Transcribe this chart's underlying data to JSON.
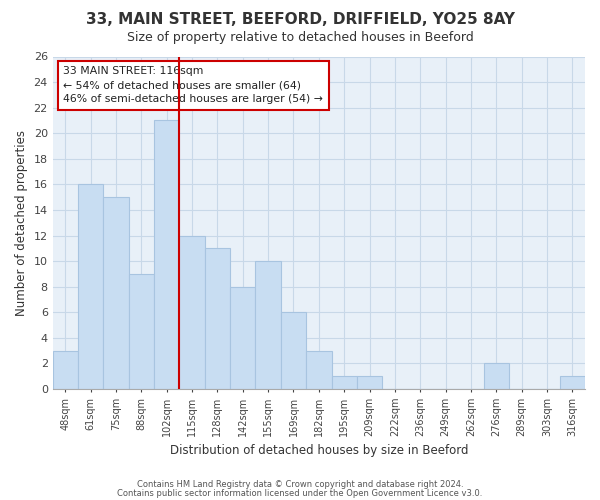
{
  "title": "33, MAIN STREET, BEEFORD, DRIFFIELD, YO25 8AY",
  "subtitle": "Size of property relative to detached houses in Beeford",
  "xlabel": "Distribution of detached houses by size in Beeford",
  "ylabel": "Number of detached properties",
  "bar_color": "#c8ddf2",
  "bar_edge_color": "#a8c4e0",
  "bin_labels": [
    "48sqm",
    "61sqm",
    "75sqm",
    "88sqm",
    "102sqm",
    "115sqm",
    "128sqm",
    "142sqm",
    "155sqm",
    "169sqm",
    "182sqm",
    "195sqm",
    "209sqm",
    "222sqm",
    "236sqm",
    "249sqm",
    "262sqm",
    "276sqm",
    "289sqm",
    "303sqm",
    "316sqm"
  ],
  "values": [
    3,
    16,
    15,
    9,
    21,
    12,
    11,
    8,
    10,
    6,
    3,
    1,
    1,
    0,
    0,
    0,
    0,
    2,
    0,
    0,
    1
  ],
  "ylim": [
    0,
    26
  ],
  "yticks": [
    0,
    2,
    4,
    6,
    8,
    10,
    12,
    14,
    16,
    18,
    20,
    22,
    24,
    26
  ],
  "vline_x": 5,
  "vline_color": "#cc0000",
  "annotation_title": "33 MAIN STREET: 116sqm",
  "annotation_line1": "← 54% of detached houses are smaller (64)",
  "annotation_line2": "46% of semi-detached houses are larger (54) →",
  "annotation_box_color": "#ffffff",
  "annotation_box_edge": "#cc0000",
  "footer1": "Contains HM Land Registry data © Crown copyright and database right 2024.",
  "footer2": "Contains public sector information licensed under the Open Government Licence v3.0.",
  "background_color": "#ffffff",
  "plot_bg_color": "#e8f0f8",
  "grid_color": "#c8d8e8"
}
